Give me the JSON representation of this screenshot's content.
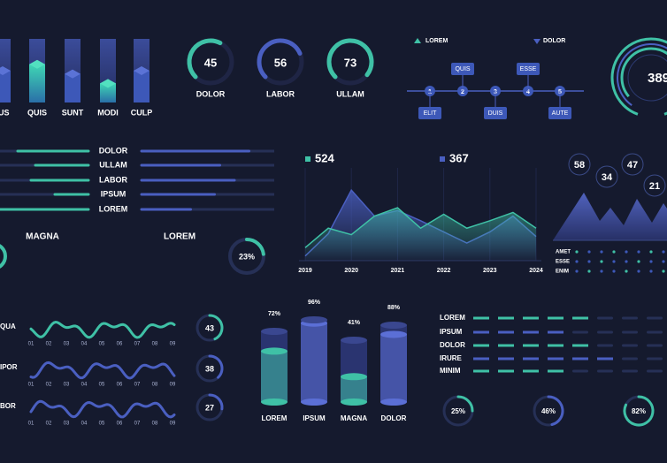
{
  "bars3d": {
    "labels": [
      "IUS",
      "QUIS",
      "SUNT",
      "MODI",
      "CULP"
    ],
    "values": [
      50,
      60,
      45,
      30,
      50
    ]
  },
  "gauges": {
    "values": [
      45,
      56,
      73
    ],
    "labels": [
      "DOLOR",
      "LABOR",
      "ULLAM"
    ]
  },
  "timeline": {
    "legend": [
      "LOREM",
      "DOLOR"
    ],
    "steps": [
      1,
      2,
      3,
      4,
      5
    ],
    "top_tags": [
      "QUIS",
      "ESSE"
    ],
    "bottom_tags": [
      "ELIT",
      "DUIS",
      "AUTE"
    ]
  },
  "ring": {
    "value": 389
  },
  "hbars": {
    "labels": [
      "DOLOR",
      "ULLAM",
      "LABOR",
      "IPSUM",
      "LOREM"
    ],
    "left": [
      80,
      60,
      65,
      38,
      100
    ],
    "right": [
      81,
      59,
      70,
      55,
      37
    ]
  },
  "headings": [
    "MAGNA",
    "LOREM"
  ],
  "small_donut": {
    "value": 23,
    "value_label": "23%"
  },
  "area": {
    "x": [
      2019,
      2019.5,
      2020,
      2020.5,
      2021,
      2021.5,
      2022,
      2022.5,
      2023,
      2023.5,
      2024
    ],
    "xticks": [
      2019,
      2020,
      2021,
      2022,
      2023,
      2024
    ],
    "series": [
      {
        "name": 524,
        "color": "#3fc1a6",
        "values": [
          14,
          35,
          28,
          48,
          57,
          35,
          50,
          35,
          43,
          52,
          35
        ]
      },
      {
        "name": 367,
        "color": "#4a5fc1",
        "values": [
          5,
          29,
          76,
          48,
          54,
          43,
          31,
          19,
          31,
          48,
          26
        ]
      }
    ]
  },
  "bubbles": [
    58,
    34,
    47,
    21
  ],
  "dot_labels": [
    "AMET",
    "ESSE",
    "ENIM"
  ],
  "waves": {
    "labels": [
      "QUA",
      "IPOR",
      "BOR"
    ],
    "ticks": [
      "01",
      "02",
      "03",
      "04",
      "05",
      "06",
      "07",
      "08",
      "09"
    ],
    "values": [
      43,
      38,
      27
    ]
  },
  "cylinders": {
    "categories": [
      "LOREM",
      "IPSUM",
      "MAGNA",
      "DOLOR"
    ],
    "values": [
      72,
      96,
      41,
      88
    ],
    "value_labels": [
      "72%",
      "96%",
      "41%",
      "88%"
    ]
  },
  "dashes": {
    "labels": [
      "LOREM",
      "IPSUM",
      "DOLOR",
      "IRURE",
      "MINIM"
    ],
    "values": [
      5,
      4,
      5,
      6,
      4
    ]
  },
  "donuts": {
    "values": [
      25,
      46,
      82
    ],
    "value_labels": [
      "25%",
      "46%",
      "82%"
    ]
  }
}
